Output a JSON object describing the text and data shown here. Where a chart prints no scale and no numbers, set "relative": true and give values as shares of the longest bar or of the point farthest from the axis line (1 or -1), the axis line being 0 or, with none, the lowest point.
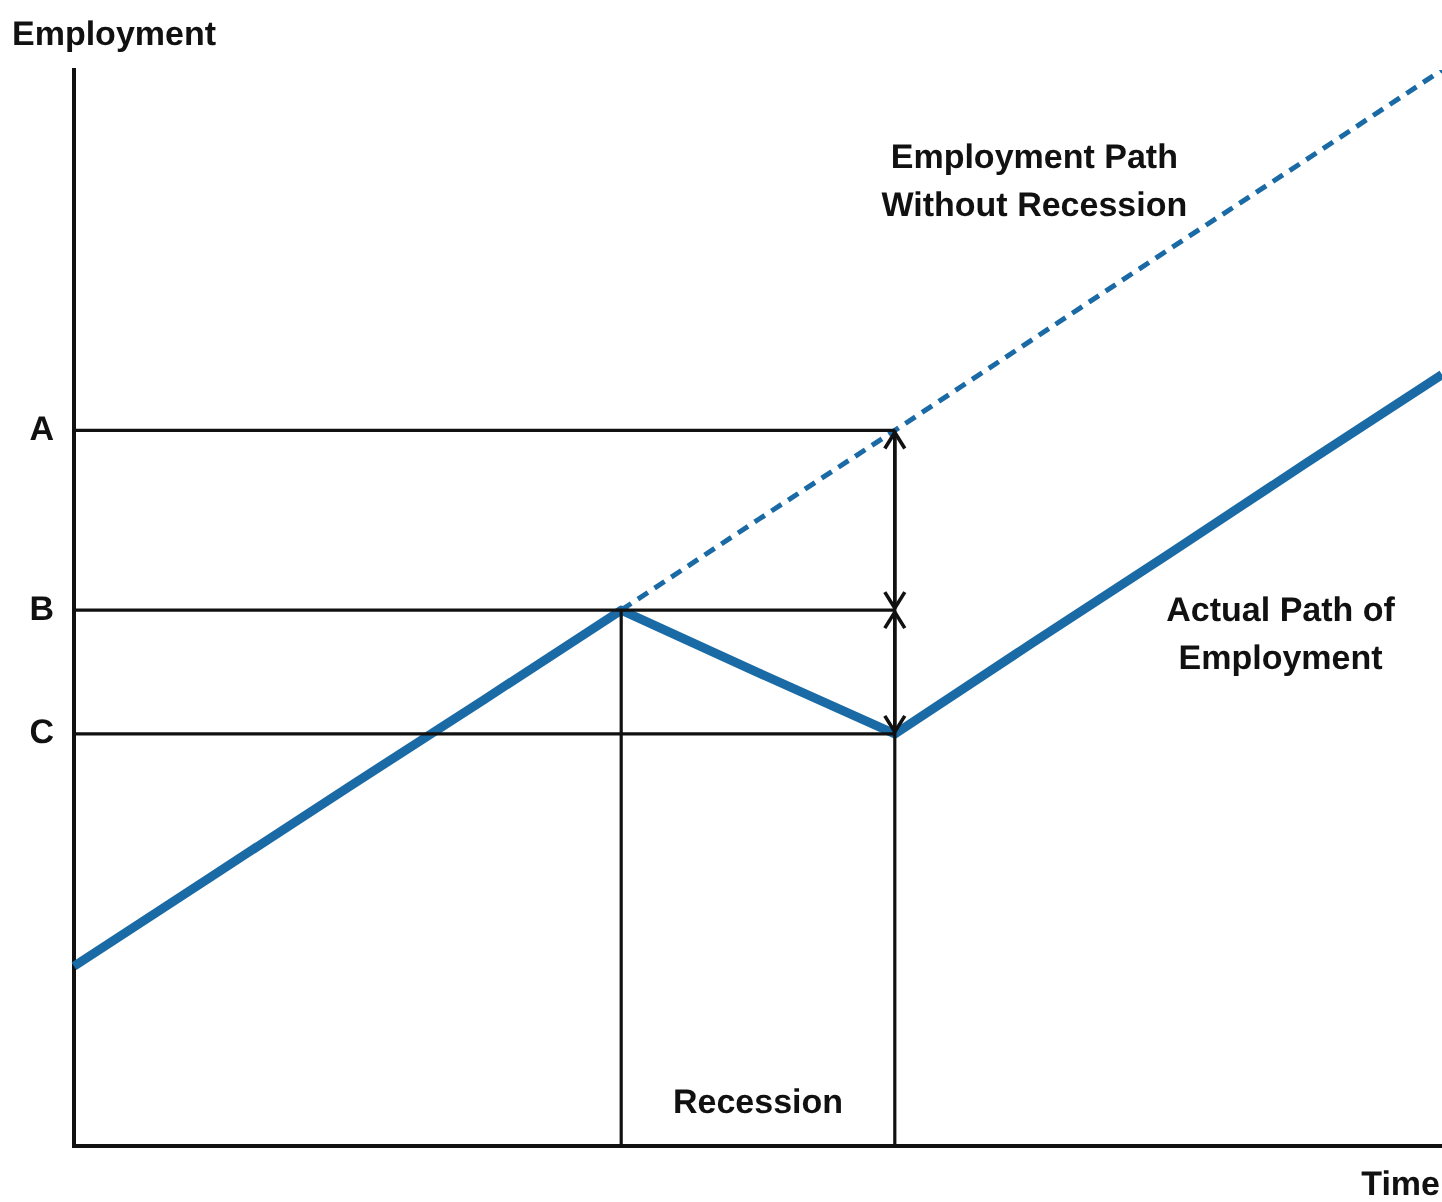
{
  "chart_data": {
    "type": "line",
    "xlabel": "Time",
    "ylabel": "Employment",
    "categories": [
      null,
      null,
      null,
      null,
      null,
      null,
      null,
      null,
      null,
      null,
      null
    ],
    "relative": true,
    "ref_lines": [
      {
        "axis": "y",
        "value": 0.665,
        "label": "A"
      },
      {
        "axis": "y",
        "value": 0.498,
        "label": "B"
      },
      {
        "axis": "y",
        "value": 0.383,
        "label": "C"
      }
    ],
    "tick_labels": "y",
    "legend": false,
    "marker": "none",
    "series": [
      {
        "name": "Employment Path Without Recession",
        "color": "#1a6aa5",
        "line_style": "dashed",
        "values": [
          null,
          null,
          null,
          null,
          0.498,
          0.582,
          0.665,
          0.749,
          0.833,
          0.916,
          1
        ]
      },
      {
        "name": "Actual Path of Employment",
        "color": "#1a6aa5",
        "line_style": "solid",
        "values": [
          0.167,
          0.25,
          0.333,
          0.415,
          0.498,
          0.44,
          0.383,
          0.467,
          0.55,
          0.634,
          0.717
        ]
      }
    ],
    "annotations": [
      "Recession"
    ]
  }
}
